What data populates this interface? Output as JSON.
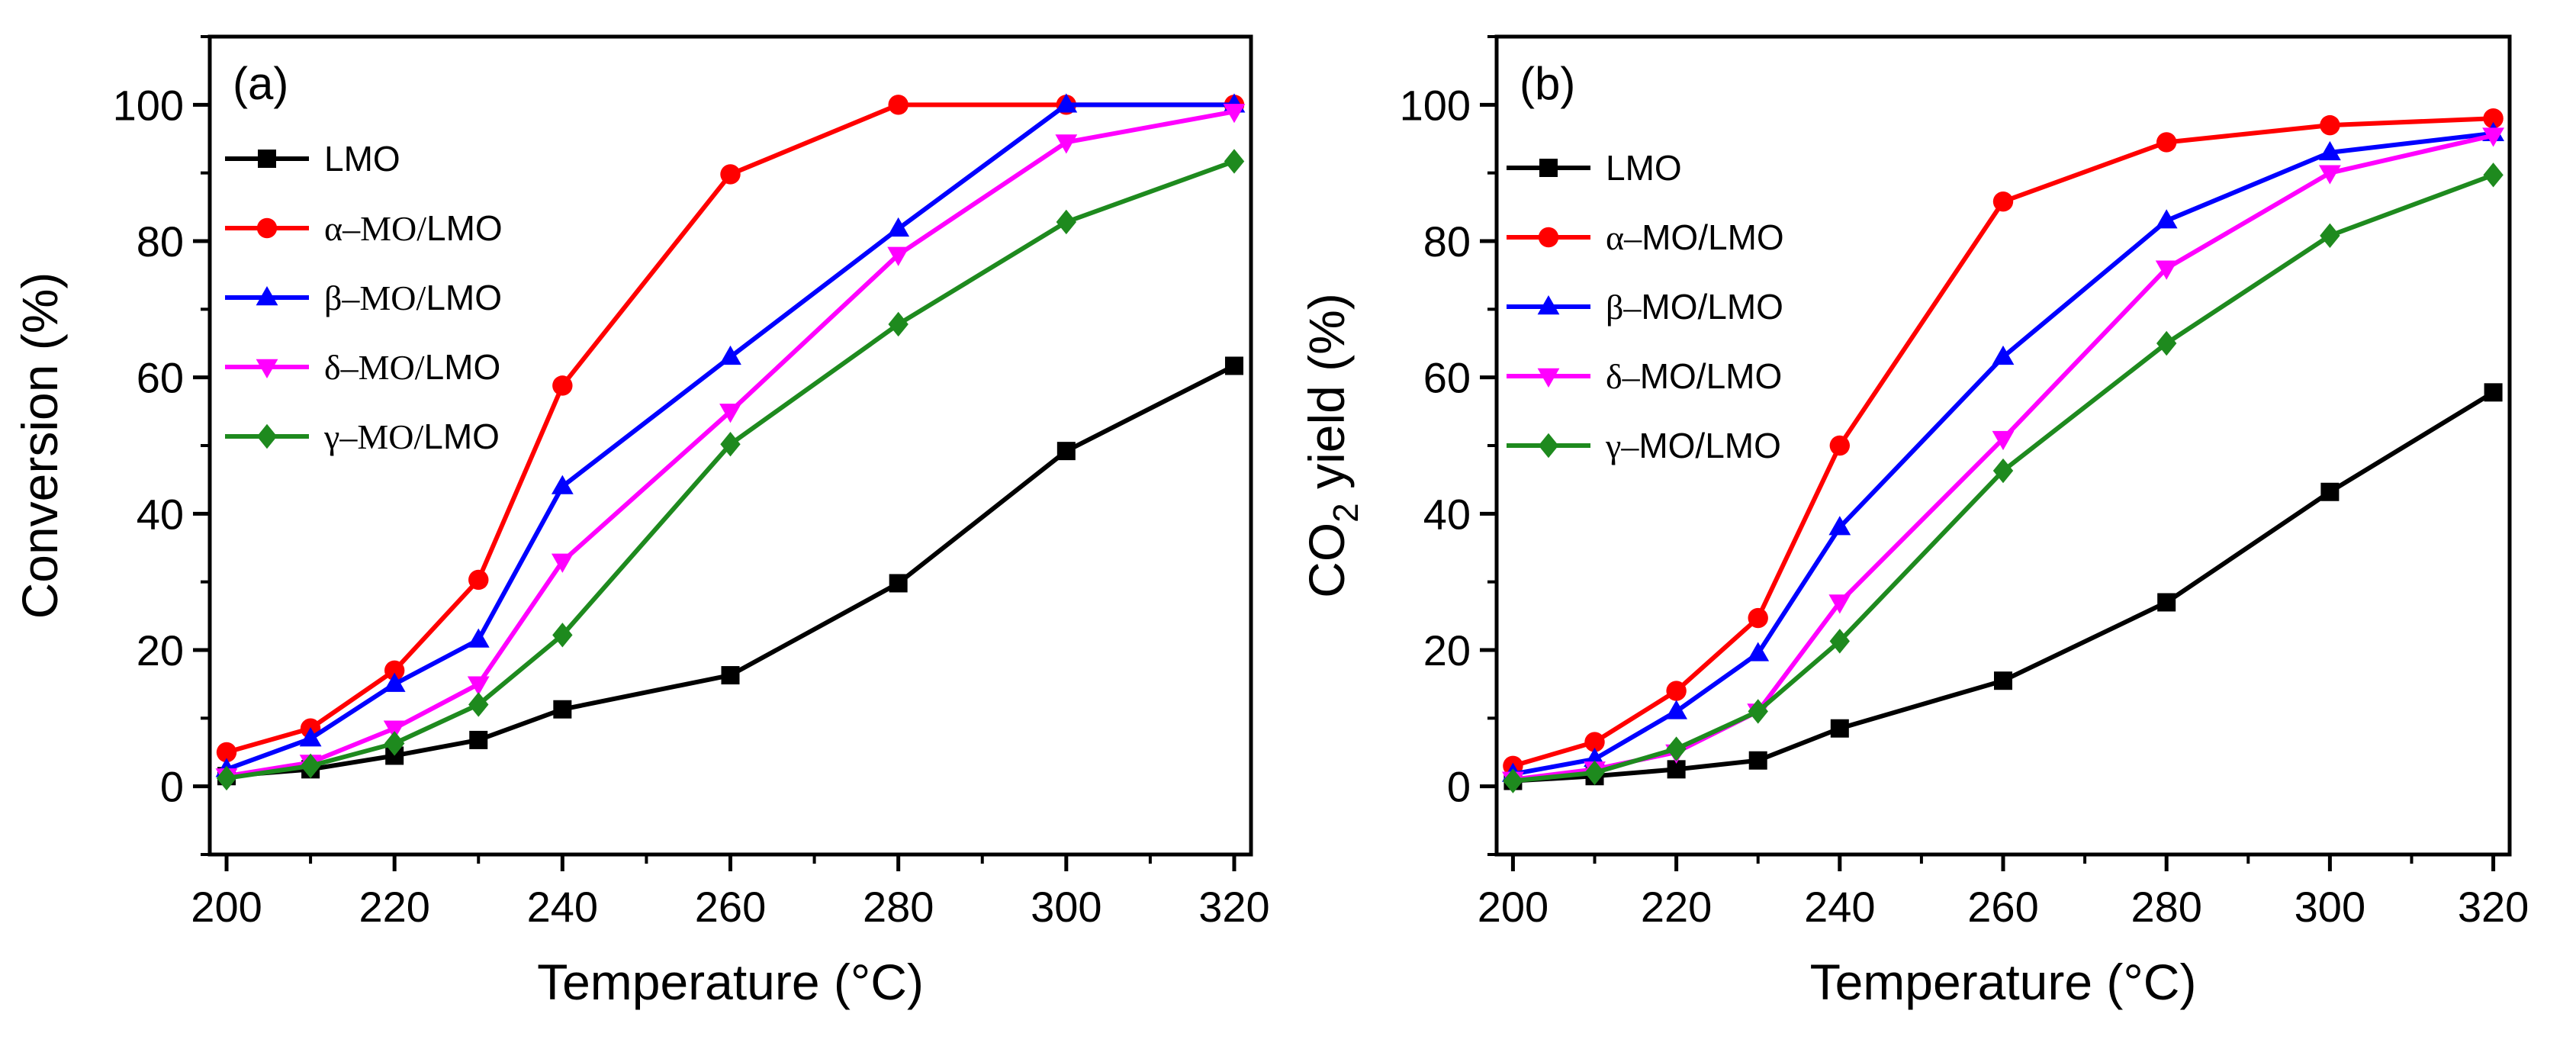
{
  "chart_data": [
    {
      "type": "line",
      "panel_label": "(a)",
      "xlabel": "Temperature (°C)",
      "ylabel": "Conversion (%)",
      "xlim": [
        198,
        322
      ],
      "ylim": [
        -10,
        110
      ],
      "x_ticks": [
        200,
        220,
        240,
        260,
        280,
        300,
        320
      ],
      "y_ticks": [
        0,
        20,
        40,
        60,
        80,
        100
      ],
      "legend_position": "upper-left",
      "x": [
        200,
        210,
        220,
        230,
        240,
        260,
        280,
        300,
        320
      ],
      "series": [
        {
          "name": "LMO",
          "greek": "",
          "rest": "LMO",
          "color": "#000000",
          "marker": "square",
          "values": [
            1.5,
            2.5,
            4.5,
            6.8,
            11.3,
            16.3,
            29.8,
            49.2,
            61.7
          ]
        },
        {
          "name": "α–MO/LMO",
          "greek": "α–MO/",
          "rest": "LMO",
          "color": "#ff0000",
          "marker": "circle",
          "values": [
            5.0,
            8.5,
            17.0,
            30.3,
            58.8,
            89.8,
            100.0,
            100.0,
            100.0
          ]
        },
        {
          "name": "β–MO/LMO",
          "greek": "β–MO/",
          "rest": "LMO",
          "color": "#0000ff",
          "marker": "triangle-up",
          "values": [
            2.5,
            7.0,
            15.0,
            21.5,
            44.0,
            63.0,
            81.8,
            100.0,
            100.0
          ]
        },
        {
          "name": "δ–MO/LMO",
          "greek": "δ–MO/",
          "rest": "LMO",
          "color": "#ff00ff",
          "marker": "triangle-down",
          "values": [
            1.5,
            3.5,
            8.5,
            15.0,
            33.0,
            55.0,
            78.0,
            94.5,
            99.0
          ]
        },
        {
          "name": "γ–MO/LMO",
          "greek": "γ–MO/",
          "rest": "LMO",
          "color": "#1e8a1e",
          "marker": "diamond",
          "values": [
            1.2,
            3.0,
            6.3,
            12.0,
            22.2,
            50.2,
            67.8,
            82.8,
            91.7
          ]
        }
      ]
    },
    {
      "type": "line",
      "panel_label": "(b)",
      "xlabel": "Temperature (°C)",
      "ylabel": "CO2 yield (%)",
      "ylabel_main": "CO",
      "ylabel_sub": "2",
      "ylabel_tail": " yield (%)",
      "xlim": [
        198,
        322
      ],
      "ylim": [
        -10,
        110
      ],
      "x_ticks": [
        200,
        220,
        240,
        260,
        280,
        300,
        320
      ],
      "y_ticks": [
        0,
        20,
        40,
        60,
        80,
        100
      ],
      "legend_position": "upper-left",
      "x": [
        200,
        210,
        220,
        230,
        240,
        260,
        280,
        300,
        320
      ],
      "series": [
        {
          "name": "LMO",
          "greek": "",
          "rest": "LMO",
          "color": "#000000",
          "marker": "square",
          "values": [
            0.8,
            1.5,
            2.5,
            3.8,
            8.5,
            15.5,
            27.0,
            43.2,
            57.8
          ]
        },
        {
          "name": "α–MO/LMO",
          "greek": "α–",
          "rest": "MO/LMO",
          "color": "#ff0000",
          "marker": "circle",
          "values": [
            3.0,
            6.5,
            14.0,
            24.7,
            50.0,
            85.8,
            94.5,
            97.0,
            98.0
          ]
        },
        {
          "name": "β–MO/LMO",
          "greek": "β–",
          "rest": "MO/LMO",
          "color": "#0000ff",
          "marker": "triangle-up",
          "values": [
            1.8,
            4.0,
            11.0,
            19.5,
            38.0,
            63.0,
            83.0,
            93.0,
            95.8
          ]
        },
        {
          "name": "δ–MO/LMO",
          "greek": "δ–",
          "rest": "MO/LMO",
          "color": "#ff00ff",
          "marker": "triangle-down",
          "values": [
            1.0,
            2.5,
            5.0,
            11.0,
            27.0,
            51.0,
            76.0,
            90.0,
            95.5
          ]
        },
        {
          "name": "γ–MO/LMO",
          "greek": "γ–",
          "rest": "MO/LMO",
          "color": "#1e8a1e",
          "marker": "diamond",
          "values": [
            0.8,
            2.0,
            5.5,
            11.0,
            21.3,
            46.3,
            65.0,
            80.8,
            89.7
          ]
        }
      ]
    }
  ]
}
